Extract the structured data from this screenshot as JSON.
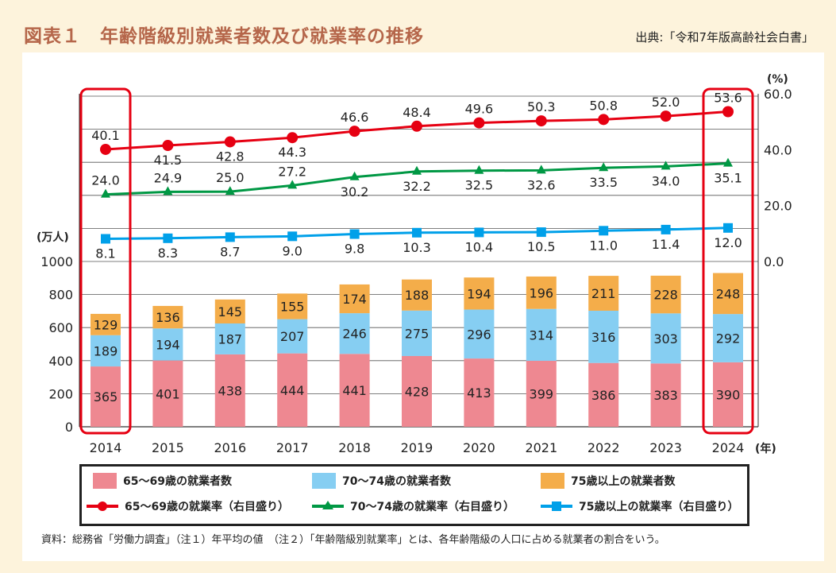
{
  "title": "図表１　年齢階級別就業者数及び就業率の推移",
  "source": "出典:「令和7年版高齢社会白書」",
  "note": "資料：総務省「労働力調査」（注１）年平均の値　（注２）「年齢階級別就業率」とは、各年齢階級の人口に占める就業者の割合をいう。",
  "chart_data": {
    "type": "bar+line",
    "categories": [
      "2014",
      "2015",
      "2016",
      "2017",
      "2018",
      "2019",
      "2020",
      "2021",
      "2022",
      "2023",
      "2024"
    ],
    "xunit": "(年)",
    "left_axis": {
      "unit": "(万人)",
      "ticks": [
        0,
        200,
        400,
        600,
        800,
        1000
      ],
      "range": [
        0,
        1000
      ]
    },
    "right_axis": {
      "unit": "(%)",
      "ticks": [
        "0.0",
        "20.0",
        "40.0",
        "60.0"
      ],
      "range": [
        0,
        60
      ]
    },
    "bar_series": [
      {
        "name": "65～69歳の就業者数",
        "color": "#ee8891",
        "values": [
          365,
          401,
          438,
          444,
          441,
          428,
          413,
          399,
          386,
          383,
          390
        ]
      },
      {
        "name": "70～74歳の就業者数",
        "color": "#86cef2",
        "values": [
          189,
          194,
          187,
          207,
          246,
          275,
          296,
          314,
          316,
          303,
          292
        ]
      },
      {
        "name": "75歳以上の就業者数",
        "color": "#f4ad4a",
        "values": [
          129,
          136,
          145,
          155,
          174,
          188,
          194,
          196,
          211,
          228,
          248
        ]
      }
    ],
    "line_series": [
      {
        "name": "65～69歳の就業率（右目盛り）",
        "color": "#e60012",
        "marker": "circle",
        "values": [
          40.1,
          41.5,
          42.8,
          44.3,
          46.6,
          48.4,
          49.6,
          50.3,
          50.8,
          52.0,
          53.6
        ]
      },
      {
        "name": "70～74歳の就業率（右目盛り）",
        "color": "#009844",
        "marker": "triangle",
        "values": [
          24.0,
          24.9,
          25.0,
          27.2,
          30.2,
          32.2,
          32.5,
          32.6,
          33.5,
          34.0,
          35.1
        ]
      },
      {
        "name": "75歳以上の就業率（右目盛り）",
        "color": "#00a0e9",
        "marker": "square",
        "values": [
          8.1,
          8.3,
          8.7,
          9.0,
          9.8,
          10.3,
          10.4,
          10.5,
          11.0,
          11.4,
          12.0
        ]
      }
    ],
    "highlighted": [
      "2014",
      "2024"
    ],
    "highlight_color": "#e60012"
  }
}
